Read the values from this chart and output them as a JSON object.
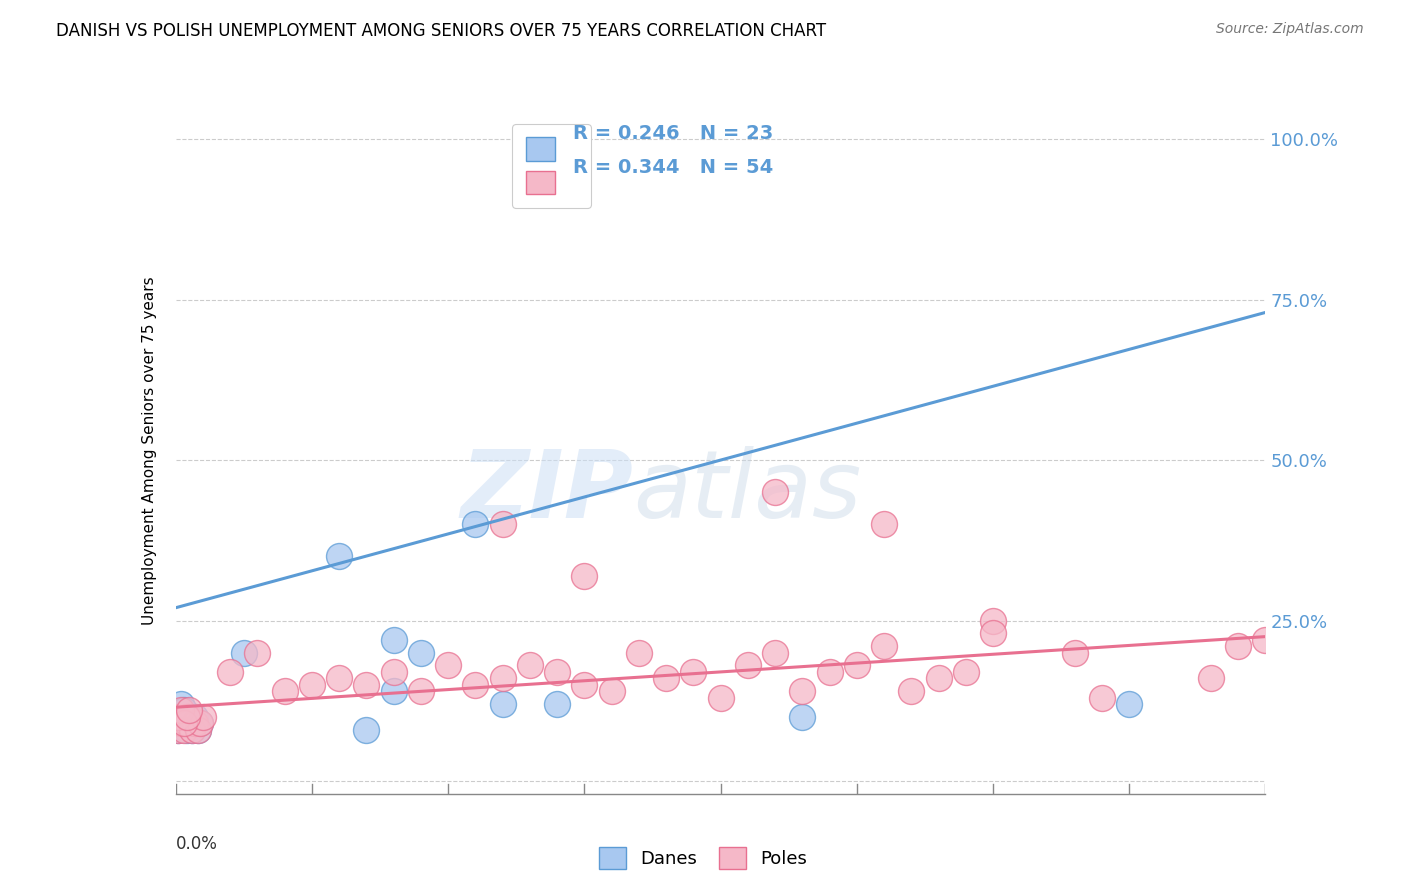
{
  "title": "DANISH VS POLISH UNEMPLOYMENT AMONG SENIORS OVER 75 YEARS CORRELATION CHART",
  "source": "Source: ZipAtlas.com",
  "ylabel": "Unemployment Among Seniors over 75 years",
  "yticks": [
    0.0,
    0.25,
    0.5,
    0.75,
    1.0
  ],
  "ytick_labels": [
    "",
    "25.0%",
    "50.0%",
    "75.0%",
    "100.0%"
  ],
  "xlim": [
    0.0,
    0.4
  ],
  "ylim": [
    -0.02,
    1.05
  ],
  "danes_R": 0.246,
  "danes_N": 23,
  "poles_R": 0.344,
  "poles_N": 54,
  "danes_color": "#a8c8f0",
  "poles_color": "#f5b8c8",
  "danes_line_color": "#5b9bd5",
  "poles_line_color": "#e87090",
  "legend_label_danes": "Danes",
  "legend_label_poles": "Poles",
  "watermark_zip": "ZIP",
  "watermark_atlas": "atlas",
  "danes_line_x0": 0.0,
  "danes_line_y0": 0.27,
  "danes_line_x1": 0.4,
  "danes_line_y1": 0.73,
  "poles_line_x0": 0.0,
  "poles_line_y0": 0.115,
  "poles_line_x1": 0.4,
  "poles_line_y1": 0.225,
  "danes_x": [
    0.001,
    0.002,
    0.003,
    0.004,
    0.005,
    0.006,
    0.007,
    0.008,
    0.009,
    0.001,
    0.002,
    0.003,
    0.025,
    0.06,
    0.07,
    0.08,
    0.08,
    0.09,
    0.11,
    0.14,
    0.23,
    0.35,
    0.12
  ],
  "danes_y": [
    0.08,
    0.09,
    0.1,
    0.08,
    0.09,
    0.08,
    0.1,
    0.08,
    0.09,
    0.1,
    0.12,
    0.11,
    0.2,
    0.35,
    0.08,
    0.22,
    0.14,
    0.2,
    0.4,
    0.12,
    0.1,
    0.12,
    0.12
  ],
  "poles_x": [
    0.001,
    0.002,
    0.003,
    0.004,
    0.005,
    0.006,
    0.007,
    0.008,
    0.009,
    0.01,
    0.001,
    0.002,
    0.003,
    0.004,
    0.005,
    0.02,
    0.03,
    0.04,
    0.05,
    0.06,
    0.07,
    0.08,
    0.09,
    0.1,
    0.11,
    0.12,
    0.13,
    0.14,
    0.15,
    0.16,
    0.17,
    0.18,
    0.19,
    0.2,
    0.21,
    0.22,
    0.23,
    0.24,
    0.25,
    0.26,
    0.27,
    0.28,
    0.29,
    0.3,
    0.22,
    0.26,
    0.3,
    0.33,
    0.38,
    0.39,
    0.4,
    0.12,
    0.15,
    0.34
  ],
  "poles_y": [
    0.08,
    0.09,
    0.08,
    0.09,
    0.1,
    0.08,
    0.09,
    0.08,
    0.09,
    0.1,
    0.1,
    0.11,
    0.09,
    0.1,
    0.11,
    0.17,
    0.2,
    0.14,
    0.15,
    0.16,
    0.15,
    0.17,
    0.14,
    0.18,
    0.15,
    0.16,
    0.18,
    0.17,
    0.15,
    0.14,
    0.2,
    0.16,
    0.17,
    0.13,
    0.18,
    0.2,
    0.14,
    0.17,
    0.18,
    0.21,
    0.14,
    0.16,
    0.17,
    0.25,
    0.45,
    0.4,
    0.23,
    0.2,
    0.16,
    0.21,
    0.22,
    0.4,
    0.32,
    0.13
  ]
}
